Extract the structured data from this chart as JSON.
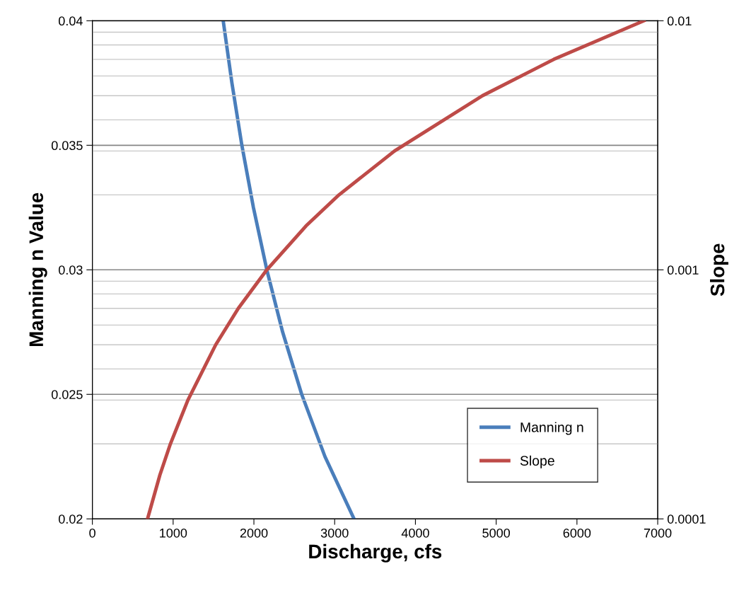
{
  "chart_data": {
    "type": "line",
    "xlabel": "Discharge, cfs",
    "ylabel": "Manning n Value",
    "y2label": "Slope",
    "xlim": [
      0,
      7000
    ],
    "xticks": [
      0,
      1000,
      2000,
      3000,
      4000,
      5000,
      6000,
      7000
    ],
    "ylim": [
      0.02,
      0.04
    ],
    "yticks": [
      0.02,
      0.025,
      0.03,
      0.035,
      0.04
    ],
    "y2lim": [
      0.0001,
      0.01
    ],
    "y2ticks": [
      0.0001,
      0.001,
      0.01
    ],
    "log": "y2",
    "grid": "y",
    "legend": "bottom right",
    "marker": "none",
    "line_style": "solid",
    "series": [
      {
        "name": "Manning n",
        "color": "#4a7ebb",
        "x": [
          3240,
          2880,
          2592,
          2356,
          2160,
          1994,
          1851,
          1728,
          1620
        ],
        "values": [
          0.02,
          0.0225,
          0.025,
          0.0275,
          0.03,
          0.0325,
          0.035,
          0.0375,
          0.04
        ]
      },
      {
        "name": "Slope",
        "color": "#be4b48",
        "axis": "y2",
        "x": [
          683,
          836,
          966,
          1183,
          1527,
          1807,
          2160,
          2645,
          3054,
          3741,
          4830,
          5714,
          6830
        ],
        "values": [
          0.0001,
          0.00015,
          0.0002,
          0.0003,
          0.0005,
          0.0007,
          0.001,
          0.0015,
          0.002,
          0.003,
          0.005,
          0.007,
          0.01
        ]
      }
    ]
  }
}
